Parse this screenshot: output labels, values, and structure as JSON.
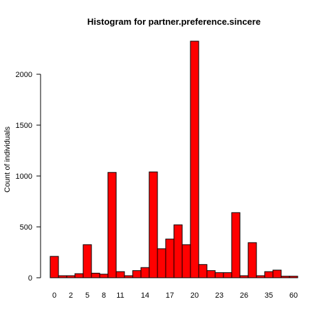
{
  "chart_data": {
    "type": "bar",
    "title": "Histogram for partner.preference.sincere",
    "xlabel": "",
    "ylabel": "Count of individuals",
    "bar_color": "#ff0000",
    "bar_border": "#000000",
    "ylim": [
      0,
      2400
    ],
    "yticks": [
      0,
      500,
      1000,
      1500,
      2000
    ],
    "x_tick_labels": [
      {
        "label": "0",
        "bin": 0
      },
      {
        "label": "2",
        "bin": 2
      },
      {
        "label": "5",
        "bin": 4
      },
      {
        "label": "8",
        "bin": 6
      },
      {
        "label": "11",
        "bin": 8
      },
      {
        "label": "14",
        "bin": 11
      },
      {
        "label": "17",
        "bin": 14
      },
      {
        "label": "20",
        "bin": 17
      },
      {
        "label": "23",
        "bin": 20
      },
      {
        "label": "26",
        "bin": 23
      },
      {
        "label": "35",
        "bin": 26
      },
      {
        "label": "60",
        "bin": 29
      }
    ],
    "values": [
      210,
      20,
      20,
      40,
      325,
      45,
      35,
      1035,
      60,
      20,
      70,
      100,
      1040,
      285,
      380,
      520,
      325,
      2325,
      130,
      70,
      50,
      50,
      640,
      20,
      345,
      20,
      60,
      75,
      15,
      15
    ]
  }
}
